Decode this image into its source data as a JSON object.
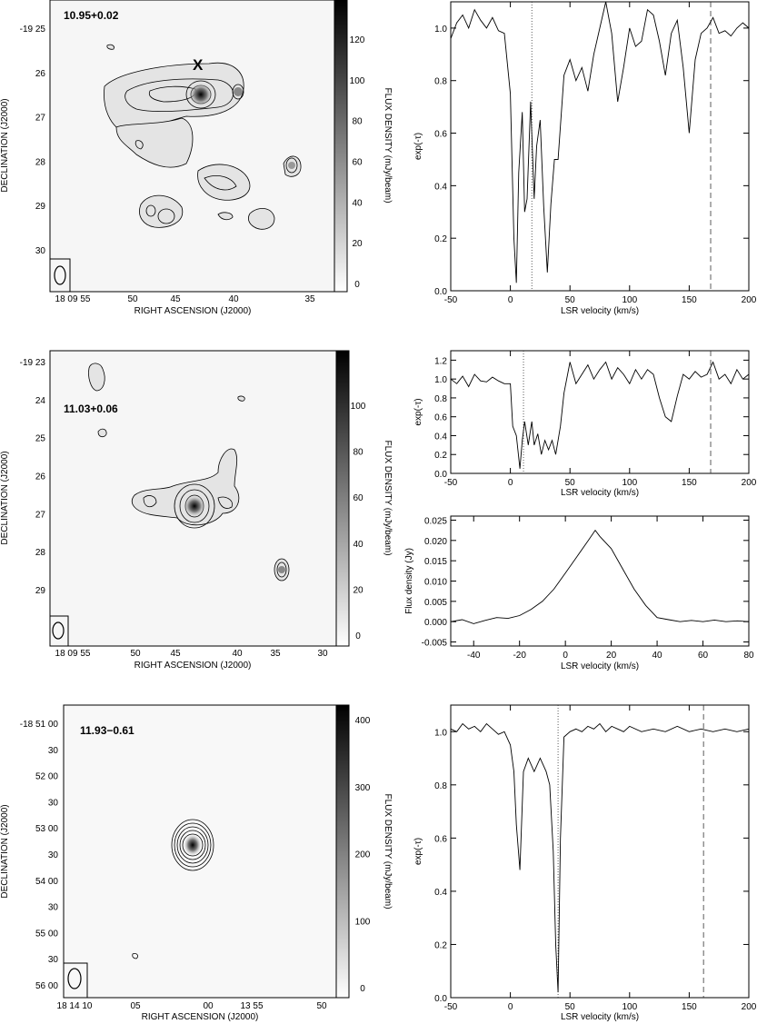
{
  "maps": [
    {
      "label": "10.95+0.02",
      "dec_ticks": [
        "-19 25",
        "26",
        "27",
        "28",
        "29",
        "30"
      ],
      "ra_ticks": [
        "18 09 55",
        "50",
        "45",
        "40",
        "35"
      ],
      "cbar_ticks": [
        "120",
        "100",
        "80",
        "60",
        "40",
        "20",
        "0"
      ],
      "xlabel": "RIGHT ASCENSION (J2000)",
      "ylabel": "DECLINATION (J2000)",
      "cbar_label": "FLUX DENSITY (mJy/beam)",
      "marker": "X"
    },
    {
      "label": "11.03+0.06",
      "dec_ticks": [
        "-19 23",
        "24",
        "25",
        "26",
        "27",
        "28",
        "29"
      ],
      "ra_ticks": [
        "18 09 55",
        "50",
        "45",
        "40",
        "35",
        "30"
      ],
      "cbar_ticks": [
        "100",
        "80",
        "60",
        "40",
        "20",
        "0"
      ],
      "xlabel": "RIGHT ASCENSION (J2000)",
      "ylabel": "DECLINATION (J2000)",
      "cbar_label": "FLUX DENSITY (mJy/beam)"
    },
    {
      "label": "11.93−0.61",
      "dec_ticks": [
        "-18 51 00",
        "30",
        "52 00",
        "30",
        "53 00",
        "30",
        "54 00",
        "30",
        "55 00",
        "30",
        "56 00"
      ],
      "ra_ticks": [
        "18 14 10",
        "05",
        "00",
        "13 55",
        "50"
      ],
      "cbar_ticks": [
        "400",
        "300",
        "200",
        "100",
        "0"
      ],
      "xlabel": "RIGHT ASCENSION (J2000)",
      "ylabel": "DECLINATION (J2000)",
      "cbar_label": "FLUX DENSITY (mJy/beam)"
    }
  ],
  "chart_data": [
    {
      "type": "line",
      "xlabel": "LSR velocity (km/s)",
      "ylabel": "exp(-τ)",
      "xlim": [
        -50,
        200
      ],
      "ylim": [
        0,
        1.1
      ],
      "xticks": [
        "-50",
        "0",
        "50",
        "100",
        "150",
        "200"
      ],
      "yticks": [
        "0.0",
        "0.2",
        "0.4",
        "0.6",
        "0.8",
        "1.0"
      ],
      "vlines": [
        {
          "x": 18,
          "style": "dotted"
        },
        {
          "x": 168,
          "style": "dashed"
        }
      ],
      "x": [
        -50,
        -45,
        -40,
        -35,
        -30,
        -25,
        -20,
        -15,
        -10,
        -5,
        0,
        3,
        5,
        7,
        10,
        12,
        14,
        17,
        20,
        22,
        25,
        28,
        31,
        34,
        37,
        40,
        45,
        50,
        55,
        60,
        65,
        70,
        75,
        80,
        85,
        90,
        95,
        100,
        105,
        110,
        115,
        120,
        125,
        130,
        135,
        140,
        145,
        150,
        155,
        160,
        165,
        170,
        175,
        180,
        185,
        190,
        195,
        200
      ],
      "y": [
        0.96,
        1.02,
        1.05,
        1.0,
        1.07,
        1.03,
        1.0,
        1.04,
        0.99,
        0.98,
        0.75,
        0.2,
        0.03,
        0.45,
        0.68,
        0.3,
        0.35,
        0.72,
        0.35,
        0.55,
        0.65,
        0.32,
        0.07,
        0.33,
        0.5,
        0.5,
        0.82,
        0.88,
        0.8,
        0.85,
        0.76,
        0.9,
        1.0,
        1.1,
        0.98,
        0.72,
        0.85,
        1.0,
        0.93,
        0.95,
        1.07,
        1.05,
        0.95,
        0.82,
        0.98,
        1.03,
        0.85,
        0.6,
        0.88,
        0.98,
        1.0,
        1.04,
        0.98,
        0.99,
        0.97,
        1.0,
        1.02,
        1.0
      ]
    },
    {
      "type": "line",
      "xlabel": "LSR velocity (km/s)",
      "ylabel": "exp(-τ)",
      "xlim": [
        -50,
        200
      ],
      "ylim": [
        0,
        1.3
      ],
      "xticks": [
        "-50",
        "0",
        "50",
        "100",
        "150",
        "200"
      ],
      "yticks": [
        "0.0",
        "0.2",
        "0.4",
        "0.6",
        "0.8",
        "1.0",
        "1.2"
      ],
      "vlines": [
        {
          "x": 11,
          "style": "dotted"
        },
        {
          "x": 168,
          "style": "dashed"
        }
      ],
      "x": [
        -50,
        -45,
        -40,
        -35,
        -30,
        -25,
        -20,
        -15,
        -10,
        -5,
        0,
        2,
        5,
        8,
        10,
        12,
        15,
        18,
        20,
        23,
        26,
        29,
        32,
        35,
        38,
        42,
        45,
        50,
        55,
        60,
        65,
        70,
        75,
        80,
        85,
        90,
        95,
        100,
        105,
        110,
        115,
        120,
        125,
        130,
        135,
        140,
        145,
        150,
        155,
        160,
        165,
        170,
        175,
        180,
        185,
        190,
        195,
        200
      ],
      "y": [
        1.0,
        0.95,
        1.03,
        0.92,
        1.05,
        0.98,
        0.97,
        1.02,
        0.98,
        0.95,
        0.95,
        0.5,
        0.4,
        0.05,
        0.35,
        0.55,
        0.3,
        0.55,
        0.3,
        0.42,
        0.2,
        0.35,
        0.25,
        0.35,
        0.2,
        0.5,
        0.85,
        1.18,
        0.95,
        1.05,
        1.15,
        1.0,
        1.1,
        1.18,
        1.0,
        1.12,
        1.05,
        0.95,
        1.1,
        1.0,
        1.1,
        1.05,
        0.8,
        0.6,
        0.55,
        0.82,
        1.05,
        1.0,
        1.08,
        1.02,
        1.05,
        1.18,
        1.0,
        1.05,
        0.95,
        1.1,
        1.0,
        1.05
      ]
    },
    {
      "type": "line",
      "xlabel": "LSR velocity (km/s)",
      "ylabel": "Flux density (Jy)",
      "xlim": [
        -50,
        80
      ],
      "ylim": [
        -0.006,
        0.026
      ],
      "xticks": [
        "-40",
        "-20",
        "0",
        "20",
        "40",
        "60",
        "80"
      ],
      "yticks": [
        "-0.005",
        "0.000",
        "0.005",
        "0.010",
        "0.015",
        "0.020",
        "0.025"
      ],
      "x": [
        -50,
        -45,
        -40,
        -35,
        -30,
        -25,
        -20,
        -15,
        -10,
        -5,
        0,
        5,
        10,
        13,
        15,
        20,
        25,
        30,
        35,
        40,
        45,
        50,
        55,
        60,
        65,
        70,
        75,
        80
      ],
      "y": [
        0.0,
        0.0005,
        -0.0005,
        0.0003,
        0.001,
        0.0008,
        0.0015,
        0.003,
        0.005,
        0.008,
        0.012,
        0.016,
        0.02,
        0.0225,
        0.021,
        0.018,
        0.013,
        0.008,
        0.004,
        0.001,
        0.0005,
        0.0,
        0.0003,
        0.0,
        0.0004,
        0.0,
        0.0002,
        0.0
      ]
    },
    {
      "type": "line",
      "xlabel": "LSR velocity (km/s)",
      "ylabel": "exp(-τ)",
      "xlim": [
        -50,
        200
      ],
      "ylim": [
        0,
        1.1
      ],
      "xticks": [
        "-50",
        "0",
        "50",
        "100",
        "150",
        "200"
      ],
      "yticks": [
        "0.0",
        "0.2",
        "0.4",
        "0.6",
        "0.8",
        "1.0"
      ],
      "vlines": [
        {
          "x": 40,
          "style": "dotted"
        },
        {
          "x": 162,
          "style": "dashed"
        }
      ],
      "x": [
        -50,
        -45,
        -40,
        -35,
        -30,
        -25,
        -20,
        -15,
        -10,
        -5,
        0,
        3,
        5,
        8,
        11,
        15,
        20,
        25,
        30,
        33,
        36,
        38,
        40,
        42,
        45,
        50,
        55,
        60,
        65,
        70,
        75,
        80,
        85,
        90,
        95,
        100,
        110,
        120,
        130,
        140,
        150,
        160,
        170,
        180,
        190,
        200
      ],
      "y": [
        1.01,
        1.0,
        1.03,
        1.01,
        1.02,
        1.0,
        1.03,
        1.01,
        0.99,
        1.0,
        0.95,
        0.85,
        0.65,
        0.48,
        0.85,
        0.9,
        0.85,
        0.9,
        0.85,
        0.8,
        0.55,
        0.2,
        0.02,
        0.6,
        0.98,
        1.0,
        1.01,
        1.0,
        1.02,
        1.01,
        1.03,
        1.0,
        1.02,
        1.01,
        1.0,
        1.02,
        1.0,
        1.01,
        1.0,
        1.02,
        1.0,
        1.01,
        1.0,
        1.01,
        1.0,
        1.01
      ]
    }
  ]
}
